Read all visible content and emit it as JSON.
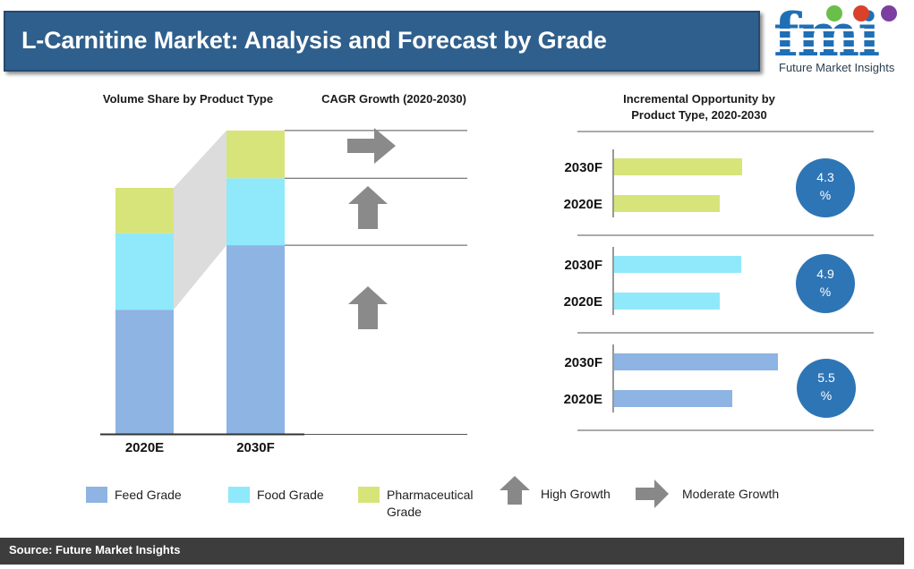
{
  "header": {
    "title": "L-Carnitine Market: Analysis and Forecast by Grade"
  },
  "logo": {
    "letters": "fmi",
    "name": "Future Market Insights",
    "colors": {
      "primary": "#1f6fb5",
      "accent_green": "#6abf4b",
      "accent_red": "#d9412b",
      "accent_purple": "#7b3fa0"
    }
  },
  "sections": {
    "volume_share": "Volume Share by Product Type",
    "cagr": "CAGR Growth (2020-2030)",
    "incremental": "Incremental Opportunity by Product Type, 2020-2030"
  },
  "chart_data": [
    {
      "type": "bar",
      "stacked": true,
      "title": "Volume Share by Product Type",
      "categories": [
        "2020E",
        "2030F"
      ],
      "series": [
        {
          "name": "Feed Grade",
          "color": "#8db4e2",
          "values": [
            52,
            79
          ]
        },
        {
          "name": "Food Grade",
          "color": "#8fe9fb",
          "values": [
            32,
            28
          ]
        },
        {
          "name": "Pharmaceutical Grade",
          "color": "#d7e47a",
          "values": [
            19,
            20
          ]
        }
      ]
    },
    {
      "type": "bar",
      "orientation": "horizontal",
      "title": "Incremental Opportunity by Product Type, 2020-2030",
      "groups": [
        {
          "series": "Pharmaceutical Grade",
          "color": "#d7e47a",
          "categories": [
            "2030F",
            "2020E"
          ],
          "values": [
            143,
            118
          ],
          "cagr": "4.3\n%"
        },
        {
          "series": "Food Grade",
          "color": "#8fe9fb",
          "categories": [
            "2030F",
            "2020E"
          ],
          "values": [
            142,
            118
          ],
          "cagr": "4.9\n%"
        },
        {
          "series": "Feed Grade",
          "color": "#8db4e2",
          "categories": [
            "2030F",
            "2020E"
          ],
          "values": [
            183,
            132
          ],
          "cagr": "5.5\n%"
        }
      ]
    }
  ],
  "cagr_arrows": [
    {
      "series": "Pharmaceutical Grade",
      "growth": "Moderate Growth"
    },
    {
      "series": "Food Grade",
      "growth": "High Growth"
    },
    {
      "series": "Feed Grade",
      "growth": "High Growth"
    }
  ],
  "legend": [
    {
      "label": "Feed Grade",
      "color": "#8db4e2"
    },
    {
      "label": "Food Grade",
      "color": "#8fe9fb"
    },
    {
      "label": "Pharmaceutical\nGrade",
      "color": "#d7e47a"
    },
    {
      "label": "High Growth",
      "icon": "up-arrow-icon"
    },
    {
      "label": "Moderate Growth",
      "icon": "right-arrow-icon"
    }
  ],
  "footer": {
    "source": "Source: Future Market Insights"
  }
}
